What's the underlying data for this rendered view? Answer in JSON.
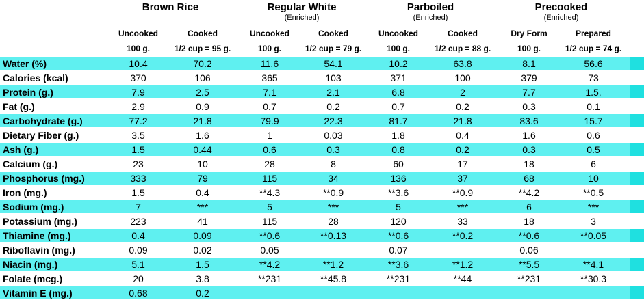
{
  "groups": [
    {
      "title": "Brown Rice",
      "subtitle": ""
    },
    {
      "title": "Regular White",
      "subtitle": "(Enriched)"
    },
    {
      "title": "Parboiled",
      "subtitle": "(Enriched)"
    },
    {
      "title": "Precooked",
      "subtitle": "(Enriched)"
    }
  ],
  "columns": [
    {
      "line1": "Uncooked",
      "line2": "100 g."
    },
    {
      "line1": "Cooked",
      "line2": "1/2 cup = 95 g."
    },
    {
      "line1": "Uncooked",
      "line2": "100 g."
    },
    {
      "line1": "Cooked",
      "line2": "1/2 cup = 79 g."
    },
    {
      "line1": "Uncooked",
      "line2": "100 g."
    },
    {
      "line1": "Cooked",
      "line2": "1/2 cup = 88 g."
    },
    {
      "line1": "Dry Form",
      "line2": "100 g."
    },
    {
      "line1": "Prepared",
      "line2": "1/2 cup = 74 g."
    }
  ],
  "rows": [
    {
      "label": "Water (%)",
      "values": [
        "10.4",
        "70.2",
        "11.6",
        "54.1",
        "10.2",
        "63.8",
        "8.1",
        "56.6"
      ]
    },
    {
      "label": "Calories (kcal)",
      "values": [
        "370",
        "106",
        "365",
        "103",
        "371",
        "100",
        "379",
        "73"
      ]
    },
    {
      "label": "Protein (g.)",
      "values": [
        "7.9",
        "2.5",
        "7.1",
        "2.1",
        "6.8",
        "2",
        "7.7",
        "1.5."
      ]
    },
    {
      "label": "Fat (g.)",
      "values": [
        "2.9",
        "0.9",
        "0.7",
        "0.2",
        "0.7",
        "0.2",
        "0.3",
        "0.1"
      ]
    },
    {
      "label": "Carbohydrate (g.)",
      "values": [
        "77.2",
        "21.8",
        "79.9",
        "22.3",
        "81.7",
        "21.8",
        "83.6",
        "15.7"
      ]
    },
    {
      "label": "Dietary Fiber (g.)",
      "values": [
        "3.5",
        "1.6",
        "1",
        "0.03",
        "1.8",
        "0.4",
        "1.6",
        "0.6"
      ]
    },
    {
      "label": "Ash (g.)",
      "values": [
        "1.5",
        "0.44",
        "0.6",
        "0.3",
        "0.8",
        "0.2",
        "0.3",
        "0.5"
      ]
    },
    {
      "label": "Calcium (g.)",
      "values": [
        "23",
        "10",
        "28",
        "8",
        "60",
        "17",
        "18",
        "6"
      ]
    },
    {
      "label": "Phosphorus (mg.)",
      "values": [
        "333",
        "79",
        "115",
        "34",
        "136",
        "37",
        "68",
        "10"
      ]
    },
    {
      "label": "Iron (mg.)",
      "values": [
        "1.5",
        "0.4",
        "**4.3",
        "**0.9",
        "**3.6",
        "**0.9",
        "**4.2",
        "**0.5"
      ]
    },
    {
      "label": "Sodium (mg.)",
      "values": [
        "7",
        "***",
        "5",
        "***",
        "5",
        "***",
        "6",
        "***"
      ]
    },
    {
      "label": "Potassium (mg.)",
      "values": [
        "223",
        "41",
        "115",
        "28",
        "120",
        "33",
        "18",
        "3"
      ]
    },
    {
      "label": "Thiamine (mg.)",
      "values": [
        "0.4",
        "0.09",
        "**0.6",
        "**0.13",
        "**0.6",
        "**0.2",
        "**0.6",
        "**0.05"
      ]
    },
    {
      "label": "Riboflavin (mg.)",
      "values": [
        "0.09",
        "0.02",
        "0.05",
        "",
        "0.07",
        "",
        "0.06",
        ""
      ]
    },
    {
      "label": "Niacin (mg.)",
      "values": [
        "5.1",
        "1.5",
        "**4.2",
        "**1.2",
        "**3.6",
        "**1.2",
        "**5.5",
        "**4.1"
      ]
    },
    {
      "label": "Folate (mcg.)",
      "values": [
        "20",
        "3.8",
        "**231",
        "**45.8",
        "**231",
        "**44",
        "**231",
        "**30.3"
      ]
    },
    {
      "label": "Vitamin E (mg.)",
      "values": [
        "0.68",
        "0.2",
        "",
        "",
        "",
        "",
        "",
        ""
      ]
    }
  ],
  "colors": {
    "band": "#5ff0f0",
    "band_edge": "#1fe0e0"
  }
}
